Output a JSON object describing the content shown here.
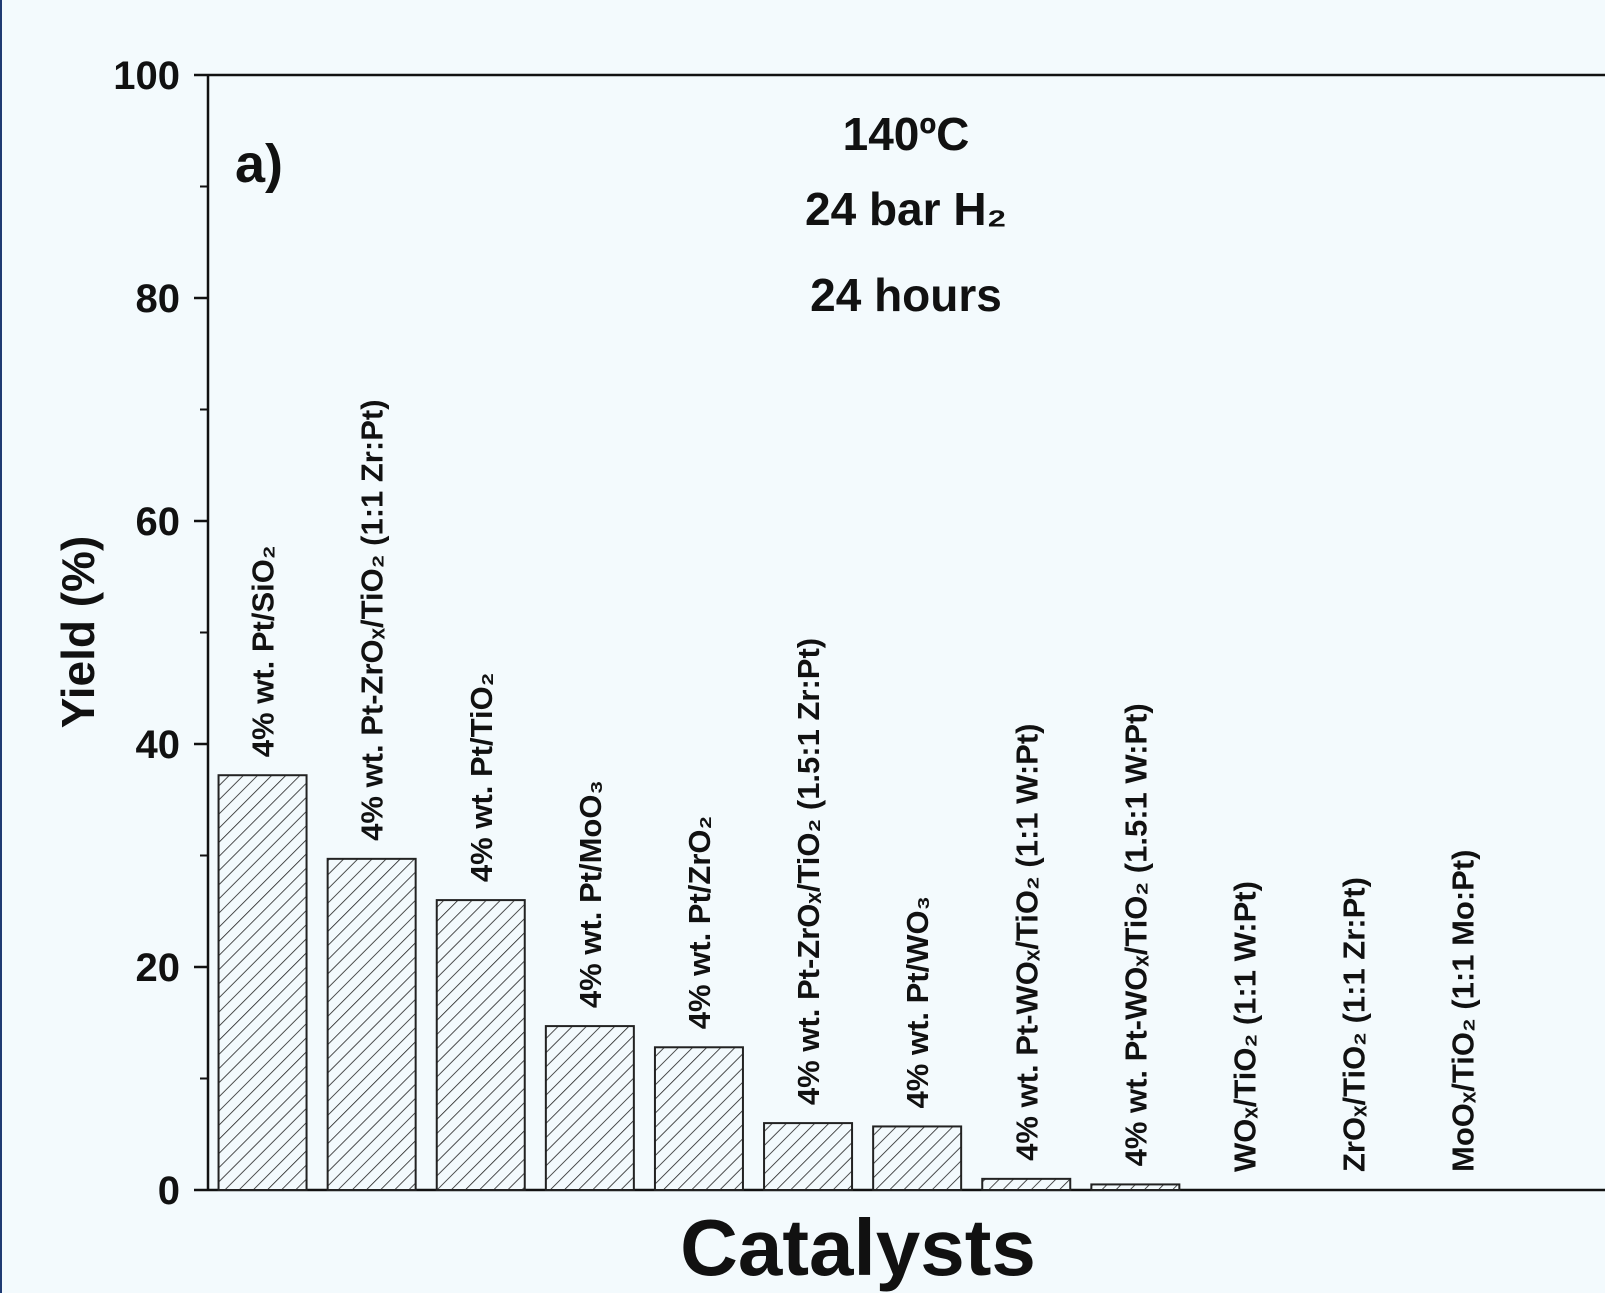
{
  "chart_data": {
    "type": "bar",
    "panel_label": "a)",
    "annotations": [
      "140ºC",
      "24 bar H₂",
      "24 hours"
    ],
    "xlabel": "Catalysts",
    "ylabel": "Yield (%)",
    "categories": [
      "4% wt. Pt/SiO₂",
      "4% wt. Pt-ZrOₓ/TiO₂ (1:1 Zr:Pt)",
      "4% wt. Pt/TiO₂",
      "4% wt. Pt/MoO₃",
      "4% wt. Pt/ZrO₂",
      "4% wt. Pt-ZrOₓ/TiO₂ (1.5:1 Zr:Pt)",
      "4% wt. Pt/WO₃",
      "4% wt. Pt-WOₓ/TiO₂ (1:1 W:Pt)",
      "4% wt. Pt-WOₓ/TiO₂ (1.5:1 W:Pt)",
      "WOₓ/TiO₂ (1:1 W:Pt)",
      "ZrOₓ/TiO₂ (1:1 Zr:Pt)",
      "MoOₓ/TiO₂ (1:1 Mo:Pt)"
    ],
    "values": [
      37.2,
      29.7,
      26,
      14.7,
      12.8,
      6,
      5.7,
      1,
      0.5,
      0,
      0,
      0
    ],
    "color": "#222222",
    "ylim": [
      0,
      100
    ],
    "yticks": [
      0,
      20,
      40,
      60,
      80,
      100
    ],
    "yminorticks": [
      10,
      30,
      50,
      70,
      90
    ]
  }
}
